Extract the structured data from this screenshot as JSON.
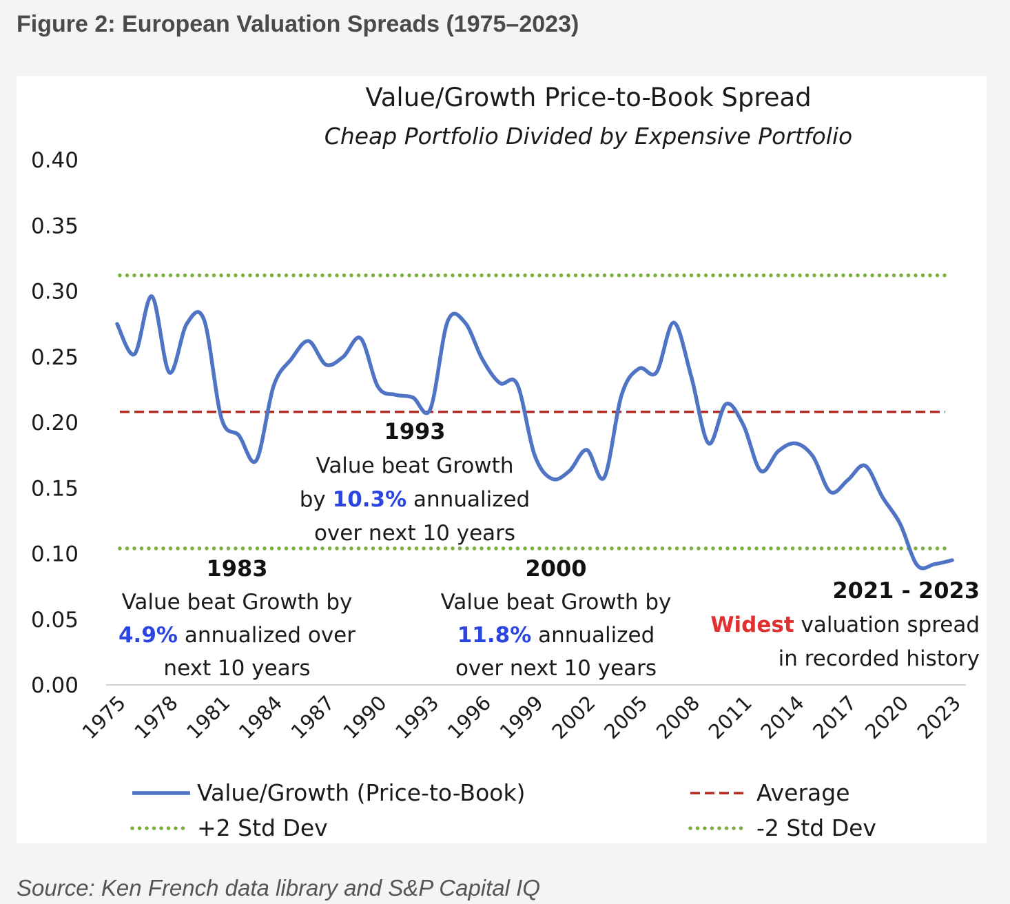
{
  "figure": {
    "title": "Figure 2: European Valuation Spreads (1975–2023)",
    "source": "Source: Ken French data library and S&P Capital IQ"
  },
  "chart_data": {
    "type": "line",
    "title": "Value/Growth Price-to-Book Spread",
    "subtitle": "Cheap Portfolio Divided by Expensive Portfolio",
    "xlabel": "",
    "ylabel": "",
    "ylim": [
      0,
      0.4
    ],
    "y_ticks": [
      "0.00",
      "0.05",
      "0.10",
      "0.15",
      "0.20",
      "0.25",
      "0.30",
      "0.35",
      "0.40"
    ],
    "x_ticks": [
      "1975",
      "1978",
      "1981",
      "1984",
      "1987",
      "1990",
      "1993",
      "1996",
      "1999",
      "2002",
      "2005",
      "2008",
      "2011",
      "2014",
      "2017",
      "2020",
      "2023"
    ],
    "x": [
      1975,
      1976,
      1977,
      1978,
      1979,
      1980,
      1981,
      1982,
      1983,
      1984,
      1985,
      1986,
      1987,
      1988,
      1989,
      1990,
      1991,
      1992,
      1993,
      1994,
      1995,
      1996,
      1997,
      1998,
      1999,
      2000,
      2001,
      2002,
      2003,
      2004,
      2005,
      2006,
      2007,
      2008,
      2009,
      2010,
      2011,
      2012,
      2013,
      2014,
      2015,
      2016,
      2017,
      2018,
      2019,
      2020,
      2021,
      2022,
      2023
    ],
    "series": [
      {
        "name": "Value/Growth (Price-to-Book)",
        "color": "#4f74c4",
        "style": "solid",
        "values": [
          0.275,
          0.252,
          0.296,
          0.238,
          0.275,
          0.278,
          0.203,
          0.19,
          0.171,
          0.228,
          0.248,
          0.262,
          0.244,
          0.25,
          0.264,
          0.227,
          0.221,
          0.219,
          0.21,
          0.277,
          0.276,
          0.248,
          0.23,
          0.229,
          0.175,
          0.157,
          0.163,
          0.179,
          0.158,
          0.221,
          0.241,
          0.238,
          0.276,
          0.235,
          0.184,
          0.214,
          0.198,
          0.163,
          0.178,
          0.184,
          0.174,
          0.147,
          0.156,
          0.167,
          0.143,
          0.123,
          0.091,
          0.092,
          0.095
        ]
      },
      {
        "name": "Average",
        "color": "#b22a22",
        "style": "dashed",
        "value": 0.208
      },
      {
        "name": "+2 Std Dev",
        "color": "#7daf3c",
        "style": "dotted",
        "value": 0.312
      },
      {
        "name": "-2 Std Dev",
        "color": "#7daf3c",
        "style": "dotted",
        "value": 0.104
      }
    ],
    "annotations": [
      {
        "year": "1993",
        "lines": [
          [
            {
              "t": "Value beat Growth"
            }
          ],
          [
            {
              "t": "by "
            },
            {
              "t": "10.3%",
              "hl": "blue"
            },
            {
              "t": " annualized"
            }
          ],
          [
            {
              "t": "over next 10 years"
            }
          ]
        ]
      },
      {
        "year": "1983",
        "lines": [
          [
            {
              "t": "Value beat Growth by"
            }
          ],
          [
            {
              "t": "4.9%",
              "hl": "blue"
            },
            {
              "t": " annualized over"
            }
          ],
          [
            {
              "t": "next 10 years"
            }
          ]
        ]
      },
      {
        "year": "2000",
        "lines": [
          [
            {
              "t": "Value beat Growth by"
            }
          ],
          [
            {
              "t": "11.8%",
              "hl": "blue"
            },
            {
              "t": " annualized"
            }
          ],
          [
            {
              "t": "over next 10 years"
            }
          ]
        ]
      },
      {
        "year": "2021 - 2023",
        "lines": [
          [
            {
              "t": "Widest",
              "hl": "red"
            },
            {
              "t": " valuation spread"
            }
          ],
          [
            {
              "t": "in recorded history"
            }
          ]
        ]
      }
    ],
    "highlight_colors": {
      "blue": "#2a45e0",
      "red": "#e03030"
    },
    "legend": {
      "placement": "bottom",
      "items": [
        "Value/Growth (Price-to-Book)",
        "Average",
        "+2 Std Dev",
        "-2 Std Dev"
      ]
    },
    "grid": false
  }
}
